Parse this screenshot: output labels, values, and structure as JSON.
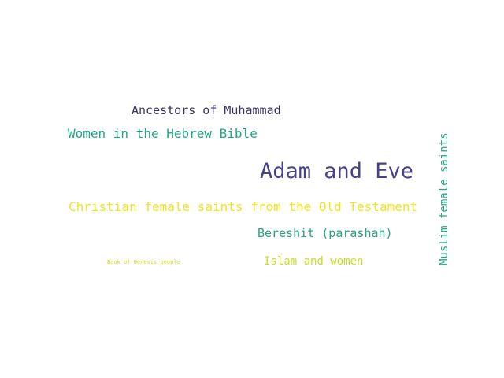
{
  "word_cloud": {
    "words": [
      {
        "text": "Ancestors of Muhammad",
        "color": "#3b2f6b"
      },
      {
        "text": "Women in the Hebrew Bible",
        "color": "#21a585"
      },
      {
        "text": "Adam and Eve",
        "color": "#46428a"
      },
      {
        "text": "Christian female saints from the Old Testament",
        "color": "#f2e41c"
      },
      {
        "text": "Bereshit (parashah)",
        "color": "#26a37f"
      },
      {
        "text": "Book of Genesis people",
        "color": "#d2e21b"
      },
      {
        "text": "Islam and women",
        "color": "#c5df22"
      },
      {
        "text": "Muslim female saints",
        "color": "#22a784"
      }
    ]
  }
}
